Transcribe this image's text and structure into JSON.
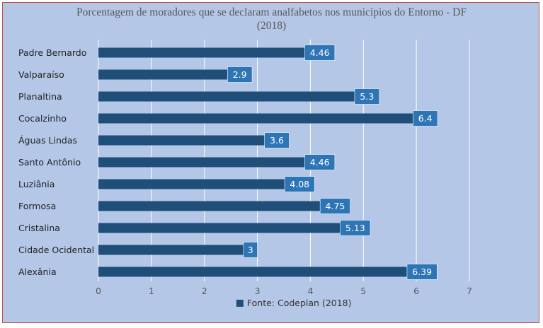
{
  "chart_data": {
    "type": "bar",
    "orientation": "horizontal",
    "title_line1": "Porcentagem de moradores que se declaram analfabetos nos municípios do Entorno - DF",
    "title_line2": "(2018)",
    "categories": [
      "Padre Bernardo",
      "Valparaíso",
      "Planaltina",
      "Cocalzinho",
      "Águas Lindas",
      "Santo Antônio",
      "Luziânia",
      "Formosa",
      "Cristalina",
      "Cidade Ocidental",
      "Alexânia"
    ],
    "series": [
      {
        "name": "Fonte: Codeplan (2018)",
        "values": [
          4.46,
          2.9,
          5.3,
          6.4,
          3.6,
          4.46,
          4.08,
          4.75,
          5.13,
          3,
          6.39
        ]
      }
    ],
    "data_labels": [
      "4.46",
      "2.9",
      "5.3",
      "6.4",
      "3.6",
      "4.46",
      "4.08",
      "4.75",
      "5.13",
      "3",
      "6.39"
    ],
    "xlim": [
      0,
      7
    ],
    "x_ticks": [
      "0",
      "1",
      "2",
      "3",
      "4",
      "5",
      "6",
      "7"
    ],
    "grid": true,
    "legend_position": "bottom",
    "colors": {
      "background": "#b4c7e7",
      "bar": "#1f4e79",
      "label_box": "#2e75b6",
      "grid": "#ffffff",
      "border": "#c0504d"
    }
  }
}
